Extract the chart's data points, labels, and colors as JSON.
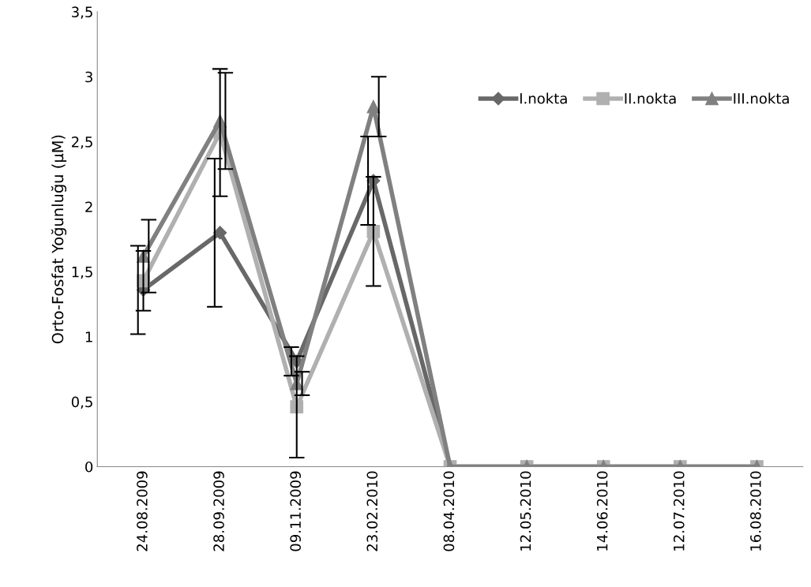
{
  "chart_data": {
    "type": "line",
    "ylabel": "Orto-Fosfat Yoğunluğu (µM)",
    "categories": [
      "24.08.2009",
      "28.09.2009",
      "09.11.2009",
      "23.02.2010",
      "08.04.2010",
      "12.05.2010",
      "14.06.2010",
      "12.07.2010",
      "16.08.2010"
    ],
    "series": [
      {
        "name": "I.nokta",
        "color": "#686868",
        "marker": "diamond",
        "values": [
          1.36,
          1.8,
          0.81,
          2.2,
          0,
          0,
          0,
          0,
          0
        ],
        "errors": [
          0.34,
          0.57,
          0.11,
          0.34,
          null,
          null,
          null,
          null,
          null
        ]
      },
      {
        "name": "II.nokta",
        "color": "#b0b0b0",
        "marker": "square",
        "values": [
          1.43,
          2.57,
          0.46,
          1.81,
          0,
          0,
          0,
          0,
          0
        ],
        "errors": [
          0.23,
          0.49,
          0.39,
          0.42,
          null,
          null,
          null,
          null,
          null
        ]
      },
      {
        "name": "III.nokta",
        "color": "#808080",
        "marker": "triangle",
        "values": [
          1.62,
          2.66,
          0.64,
          2.77,
          0,
          0,
          0,
          0,
          0
        ],
        "errors": [
          0.28,
          0.37,
          0.09,
          0.23,
          null,
          null,
          null,
          null,
          null
        ]
      }
    ],
    "ylim": [
      0,
      3.5
    ],
    "yticks": [
      0,
      {
        "value": 0.5,
        "label": "0,5"
      },
      1,
      {
        "value": 1.5,
        "label": "1,5"
      },
      2,
      {
        "value": 2.5,
        "label": "2,5"
      },
      3,
      {
        "value": 3.5,
        "label": "3,5"
      }
    ],
    "grid": false,
    "legend": "top right",
    "line_style": "solid"
  }
}
